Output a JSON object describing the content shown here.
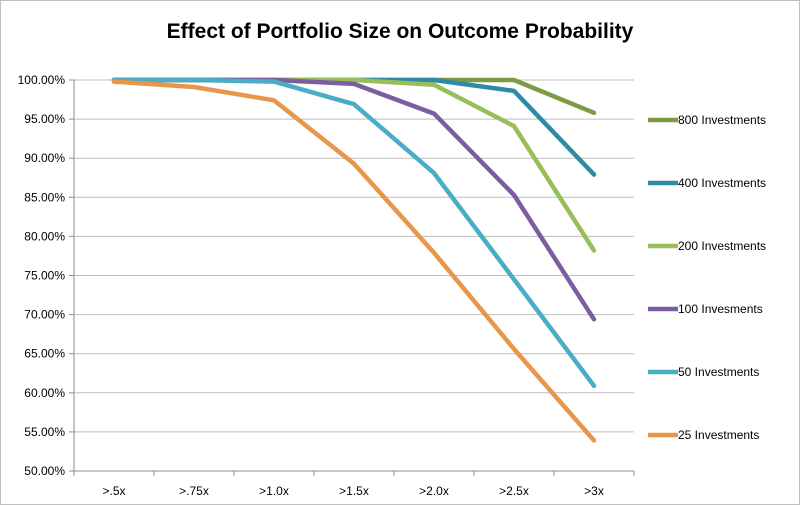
{
  "chart_data": {
    "type": "line",
    "title": "Effect of Portfolio Size on Outcome Probability",
    "xlabel": "",
    "ylabel": "",
    "categories": [
      ">.5x",
      ">.75x",
      ">1.0x",
      ">1.5x",
      ">2.0x",
      ">2.5x",
      ">3x"
    ],
    "ylim": [
      0.5,
      1.0
    ],
    "yticks": [
      "50.00%",
      "55.00%",
      "60.00%",
      "65.00%",
      "70.00%",
      "75.00%",
      "80.00%",
      "85.00%",
      "90.00%",
      "95.00%",
      "100.00%"
    ],
    "grid": true,
    "legend_position": "right",
    "series": [
      {
        "name": "800 Investments",
        "color": "#7D9A47",
        "values": [
          1.0,
          1.0,
          1.0,
          1.0,
          1.0,
          1.0,
          0.958
        ]
      },
      {
        "name": "400 Investments",
        "color": "#2E8AA5",
        "values": [
          1.0,
          1.0,
          1.0,
          1.0,
          1.0,
          0.986,
          0.879
        ]
      },
      {
        "name": "200 Investments",
        "color": "#97BE5A",
        "values": [
          1.0,
          1.0,
          1.0,
          1.0,
          0.994,
          0.941,
          0.782
        ]
      },
      {
        "name": "100 Invesments",
        "color": "#7D5DA2",
        "values": [
          1.0,
          1.0,
          1.0,
          0.995,
          0.957,
          0.853,
          0.694
        ]
      },
      {
        "name": "50 Investments",
        "color": "#4AADC6",
        "values": [
          1.0,
          1.0,
          0.998,
          0.969,
          0.881,
          0.745,
          0.609
        ]
      },
      {
        "name": "25 Investments",
        "color": "#E8964A",
        "values": [
          0.998,
          0.991,
          0.974,
          0.893,
          0.779,
          0.656,
          0.539
        ]
      }
    ]
  }
}
